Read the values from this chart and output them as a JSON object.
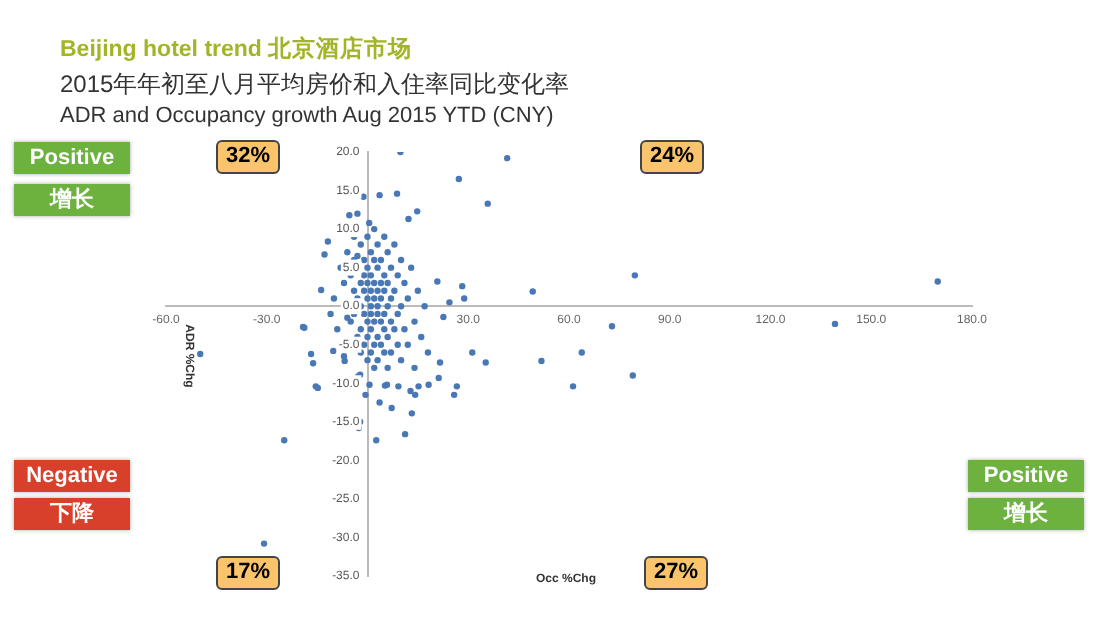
{
  "chart_data": {
    "type": "scatter",
    "title": "Beijing hotel trend 北京酒店市场",
    "subtitle": "2015年年初至八月平均房价和入住率同比变化率",
    "xlabel": "Occ %Chg",
    "ylabel": "ADR %Chg",
    "annotations": [
      "ADR and Occupancy growth Aug 2015 YTD (CNY)",
      "32%",
      "24%",
      "17%",
      "27%",
      "Positive",
      "增长",
      "Negative",
      "下降",
      "Positive",
      "增长"
    ],
    "xlim": [
      -60,
      180
    ],
    "ylim": [
      -35,
      20
    ],
    "xticks": [
      {
        "value": -60,
        "label": "-60.0"
      },
      {
        "value": -30,
        "label": "-30.0"
      },
      {
        "value": 0,
        "label": null
      },
      {
        "value": 30,
        "label": "30.0"
      },
      {
        "value": 60,
        "label": "60.0"
      },
      {
        "value": 90,
        "label": "90.0"
      },
      {
        "value": 120,
        "label": "120.0"
      },
      {
        "value": 150,
        "label": "150.0"
      },
      {
        "value": 180,
        "label": "180.0"
      }
    ],
    "yticks": [
      {
        "value": -35,
        "label": "-35.0"
      },
      {
        "value": -30,
        "label": "-30.0"
      },
      {
        "value": -25,
        "label": "-25.0"
      },
      {
        "value": -20,
        "label": "-20.0"
      },
      {
        "value": -15,
        "label": "-15.0"
      },
      {
        "value": -10,
        "label": "-10.0"
      },
      {
        "value": -5,
        "label": "-5.0"
      },
      {
        "value": 0,
        "label": "0.0"
      },
      {
        "value": 5,
        "label": "5.0"
      },
      {
        "value": 10,
        "label": "10.0"
      },
      {
        "value": 15,
        "label": "15.0"
      },
      {
        "value": 20,
        "label": "20.0"
      }
    ],
    "grid": false,
    "legend": false,
    "marker": "circle",
    "series": [
      {
        "color": "#4a78b4",
        "x": [
          9.8,
          41.6,
          27.2,
          35.8,
          79.6,
          49.2,
          72.8,
          63.8,
          51.8,
          79,
          61.2,
          35.2,
          31.2,
          21.6,
          26.6,
          28.2,
          28.8,
          20.8,
          24.4,
          22.6,
          169.8,
          139.2,
          -19.2,
          -49.8,
          -24.8,
          -30.8,
          11.2,
          2.6,
          -2.2,
          -2.6,
          -14.8,
          13.2,
          7.2,
          3.6,
          -0.6,
          14.2,
          12.8,
          25.8,
          18.2,
          9.2,
          5.2,
          15.2,
          21.2,
          -2.2,
          0.6,
          -11.8,
          -12.8,
          -5.4,
          3.6,
          8.8,
          14.8,
          12.2,
          -13.8,
          -18.8,
          -16.8,
          -16.2,
          -15.4,
          -10.2,
          -6.8,
          -2.8,
          5.8,
          -1.2,
          0.5,
          -3,
          -8,
          -7,
          -6,
          -6,
          -5,
          -5,
          -4,
          -4,
          -4,
          -4,
          -3,
          -3,
          -3,
          -2,
          -2,
          -2,
          -2,
          -2,
          -1,
          -1,
          -1,
          -1,
          -1,
          0,
          0,
          0,
          0,
          0,
          0,
          0,
          1,
          1,
          1,
          1,
          1,
          1,
          1,
          2,
          2,
          2,
          2,
          2,
          2,
          2,
          3,
          3,
          3,
          3,
          3,
          3,
          3,
          4,
          4,
          4,
          4,
          4,
          5,
          5,
          5,
          5,
          5,
          5,
          6,
          6,
          6,
          6,
          6,
          7,
          7,
          7,
          7,
          8,
          8,
          8,
          9,
          9,
          9,
          10,
          10,
          10,
          11,
          11,
          12,
          12,
          13,
          14,
          14,
          15,
          16,
          17,
          18,
          -9,
          -10,
          -11,
          -7
        ],
        "values": [
          20.0,
          19.2,
          16.5,
          13.3,
          4.0,
          1.9,
          -2.6,
          -6.0,
          -7.1,
          -9.0,
          -10.4,
          -7.3,
          -6.0,
          -7.3,
          -10.4,
          2.6,
          1.0,
          3.2,
          0.5,
          -1.4,
          3.2,
          -2.3,
          -2.7,
          -6.2,
          -17.4,
          -30.8,
          -16.6,
          -17.4,
          -15.0,
          -15.8,
          -10.6,
          -13.9,
          -13.2,
          -12.5,
          -11.5,
          -11.5,
          -11.0,
          -11.5,
          -10.2,
          -10.4,
          -10.3,
          -10.4,
          -9.3,
          -8.9,
          -10.2,
          8.4,
          6.7,
          11.8,
          14.4,
          14.6,
          12.3,
          11.3,
          2.1,
          -2.8,
          -6.2,
          -7.4,
          -10.4,
          -5.8,
          -7.1,
          -9.1,
          -10.2,
          14.2,
          10.8,
          12.0,
          5,
          3,
          7,
          -1.5,
          -2,
          4,
          9,
          6,
          2,
          -1,
          -4,
          6.5,
          1,
          8,
          3,
          0,
          -3,
          -6,
          6,
          4,
          2,
          -1,
          -5,
          9,
          5,
          3,
          1,
          -2,
          -4,
          -7,
          7,
          4,
          2,
          0,
          -1,
          -3,
          -6,
          10,
          6,
          3,
          1,
          -2,
          -5,
          -8,
          8,
          5,
          2,
          0,
          -1,
          -4,
          -7,
          6,
          3,
          1,
          -2,
          -5,
          9,
          4,
          2,
          -1,
          -3,
          -6,
          7,
          3,
          0,
          -4,
          -8,
          5,
          1,
          -2,
          -6,
          8,
          2,
          -3,
          4,
          -1,
          -5,
          6,
          0,
          -7,
          3,
          -3,
          1,
          -5,
          5,
          -2,
          -8,
          2,
          -4,
          0,
          -6,
          -3,
          1,
          -1,
          -6.5
        ]
      }
    ]
  }
}
